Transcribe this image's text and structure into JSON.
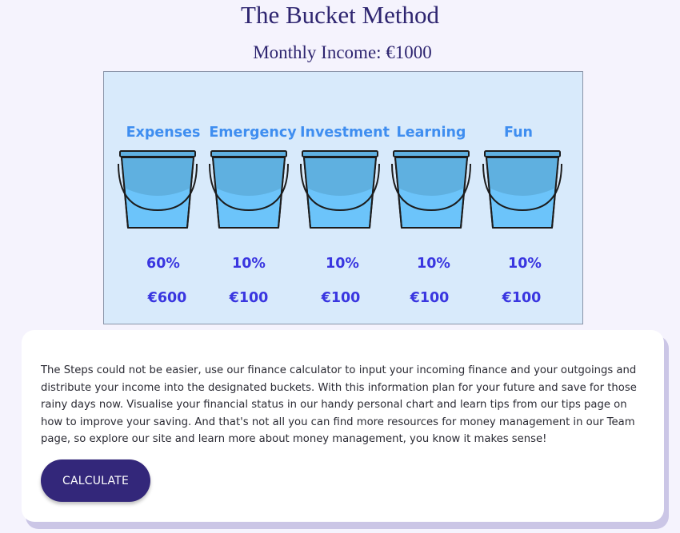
{
  "header": {
    "title": "The Bucket Method",
    "subtitle": "Monthly Income: €1000"
  },
  "buckets": [
    {
      "name": "Expenses",
      "percent": "60%",
      "amount": "€600"
    },
    {
      "name": "Emergency",
      "percent": "10%",
      "amount": "€100"
    },
    {
      "name": "Investment",
      "percent": "10%",
      "amount": "€100"
    },
    {
      "name": "Learning",
      "percent": "10%",
      "amount": "€100"
    },
    {
      "name": "Fun",
      "percent": "10%",
      "amount": "€100"
    }
  ],
  "colors": {
    "title": "#2e2570",
    "infographic_bg": "#d8eafb",
    "label_blue": "#3f8ef0",
    "value_indigo": "#3a36e0",
    "bucket_top": "#5fb0e0",
    "bucket_bottom": "#6cc4fa",
    "button": "#33277a"
  },
  "info_card": {
    "text": "The Steps could not be easier, use our finance calculator to input your incoming finance and your outgoings and distribute your income into the designated buckets. With this information plan for your future and save for those rainy days now. Visualise your financial status in our handy personal chart and learn tips from our tips page on how to improve your saving. And that's not all you can find more resources for money management in our Team page, so explore our site and learn more about money management, you know it makes sense!",
    "button_label": "CALCULATE"
  }
}
